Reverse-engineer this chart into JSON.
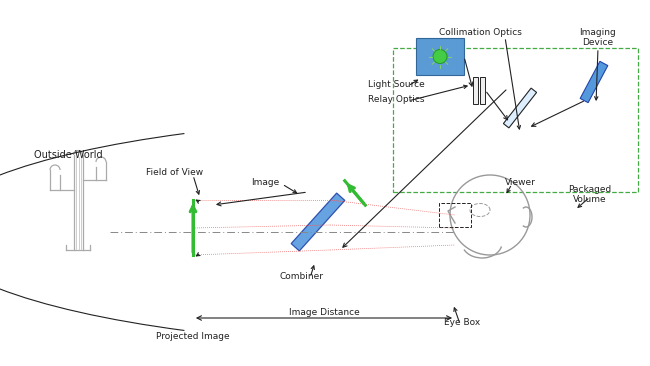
{
  "bg_color": "#ffffff",
  "fig_width": 6.5,
  "fig_height": 3.66,
  "dpi": 100,
  "labels": {
    "outside_world": "Outside World",
    "field_of_view": "Field of View",
    "combiner": "Combiner",
    "image": "Image",
    "light_source": "Light Source",
    "relay_optics": "Relay Optics",
    "collimation_optics": "Collimation Optics",
    "imaging_device": "Imaging\nDevice",
    "packaged_volume": "Packaged\nVolume",
    "viewer": "Viewer",
    "eye_box": "Eye Box",
    "image_distance": "Image Distance",
    "projected_image": "Projected Image"
  },
  "colors": {
    "black": "#222222",
    "gray": "#999999",
    "green": "#33bb33",
    "blue_combiner": "#5599dd",
    "blue_source": "#5b9bd5",
    "dashed_box": "#44aa44",
    "red_ray": "#ee5555",
    "axis_gray": "#888888"
  },
  "font_size": 6.5
}
